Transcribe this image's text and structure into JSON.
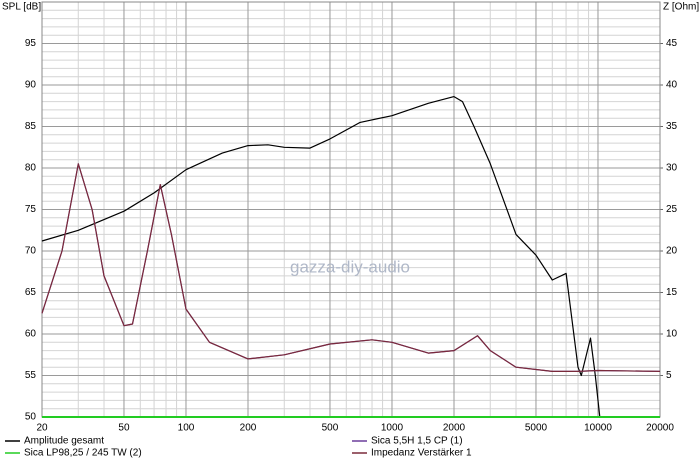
{
  "chart_data": {
    "type": "line",
    "ylabel": "SPL [dB]",
    "y2label": "Z [Ohm]",
    "watermark": "gazza-diy-audio",
    "xscale": "log",
    "xlim": [
      20,
      20000
    ],
    "xticks": [
      20,
      50,
      100,
      200,
      500,
      1000,
      2000,
      5000,
      10000,
      20000
    ],
    "ylim": [
      50,
      100
    ],
    "yticks": [
      50,
      55,
      60,
      65,
      70,
      75,
      80,
      85,
      90,
      95
    ],
    "y2lim": [
      0,
      50
    ],
    "y2ticks": [
      5,
      10,
      15,
      20,
      25,
      30,
      35,
      40,
      45
    ],
    "grid": true,
    "series": [
      {
        "name": "Amplitude gesamt",
        "color": "#000000",
        "x": [
          20,
          30,
          50,
          70,
          100,
          150,
          200,
          250,
          300,
          400,
          500,
          700,
          1000,
          1500,
          2000,
          2200,
          2500,
          3000,
          4000,
          5000,
          6000,
          7000,
          8000,
          8300,
          9200,
          9700,
          10200,
          15000,
          20000
        ],
        "values": [
          71.2,
          72.5,
          74.8,
          77,
          79.8,
          81.8,
          82.7,
          82.8,
          82.5,
          82.4,
          83.5,
          85.5,
          86.3,
          87.8,
          88.6,
          88,
          85,
          80.5,
          72,
          69.5,
          66.5,
          67.3,
          56,
          55,
          59.5,
          55,
          50,
          50,
          50
        ]
      },
      {
        "name": "Sica 5,5H 1,5 CP (1)",
        "color": "#6a3d9a",
        "axis": "y2",
        "x": [
          20,
          25,
          30,
          35,
          40,
          50,
          55,
          65,
          75,
          85,
          100,
          130,
          200,
          300,
          500,
          800,
          1000,
          1500,
          2000,
          2600,
          3000,
          4000,
          6000,
          8000,
          10000,
          20000
        ],
        "values": [
          12.5,
          20,
          30.5,
          25,
          17,
          11,
          11.2,
          20,
          28,
          22,
          13,
          9,
          7,
          7.5,
          8.8,
          9.3,
          9,
          7.7,
          8,
          9.8,
          8,
          6,
          5.5,
          5.5,
          5.6,
          5.5
        ]
      },
      {
        "name": "Sica LP98,25 / 245 TW (2)",
        "color": "#22cc22",
        "x": [
          20,
          20000
        ],
        "values": [
          50,
          50
        ]
      },
      {
        "name": "Impedanz Verstärker 1",
        "color": "#7a2a3a",
        "axis": "y2",
        "x": [
          20,
          25,
          30,
          35,
          40,
          50,
          55,
          65,
          75,
          85,
          100,
          130,
          200,
          300,
          500,
          800,
          1000,
          1500,
          2000,
          2600,
          3000,
          4000,
          6000,
          8000,
          10000,
          20000
        ],
        "values": [
          12.5,
          20,
          30.5,
          25,
          17,
          11,
          11.2,
          20,
          28,
          22,
          13,
          9,
          7,
          7.5,
          8.8,
          9.3,
          9,
          7.7,
          8,
          9.8,
          8,
          6,
          5.5,
          5.5,
          5.6,
          5.5
        ]
      }
    ]
  }
}
